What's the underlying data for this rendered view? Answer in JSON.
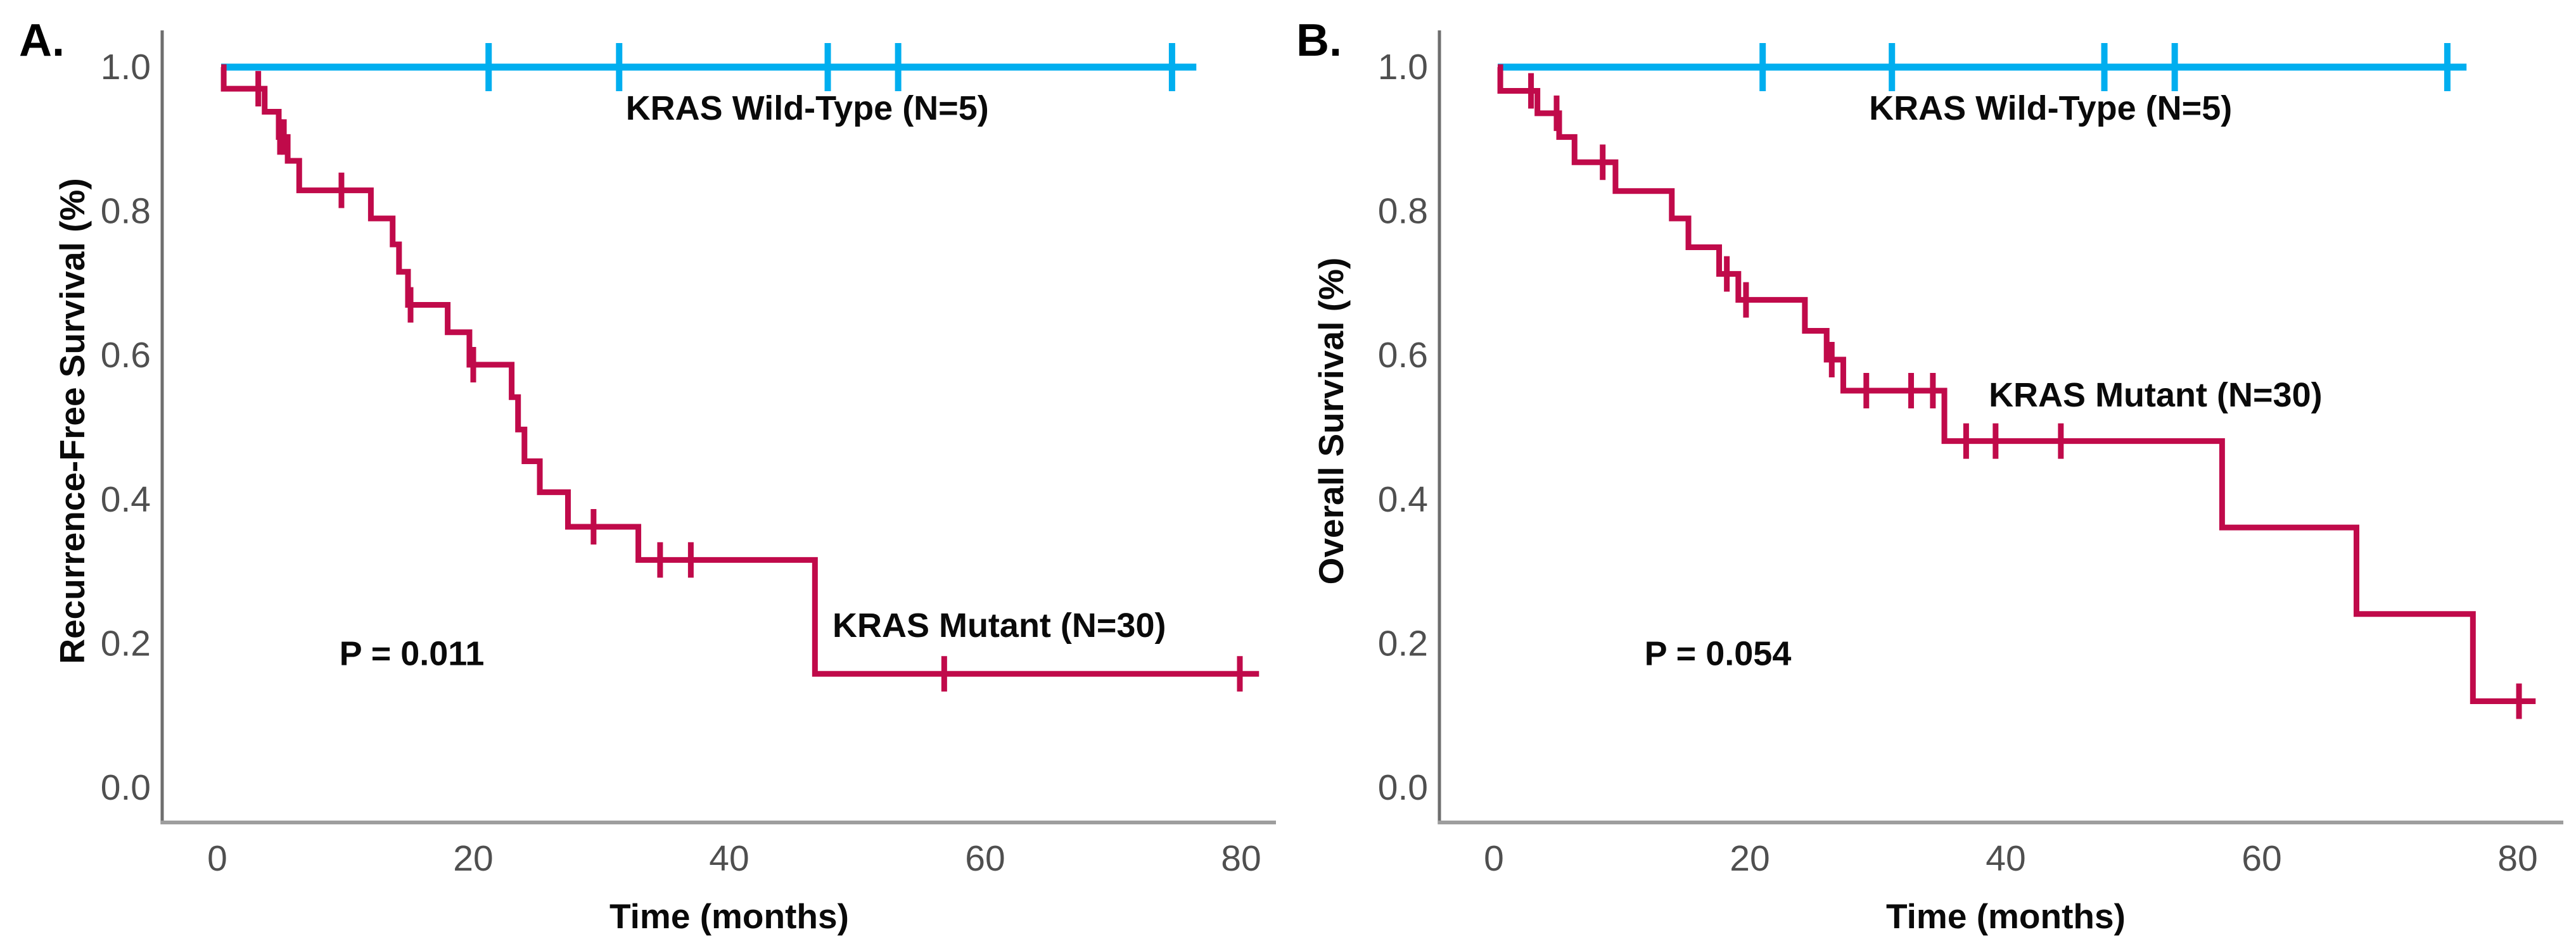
{
  "chart_data": [
    {
      "type": "line",
      "subtype": "kaplan_meier_step",
      "panel_label": "A.",
      "title": "",
      "xlabel": "Time (months)",
      "ylabel": "Recurrence-Free Survival (%)",
      "xticks": [
        0,
        20,
        40,
        60,
        80
      ],
      "x_tick_labels": [
        "0",
        "20",
        "40",
        "60",
        "80"
      ],
      "yticks": [
        0,
        0.2,
        0.4,
        0.6,
        0.8,
        1.0
      ],
      "y_tick_labels": [
        "0.0",
        "0.2",
        "0.4",
        "0.6",
        "0.8",
        "1.0"
      ],
      "xlim_months": [
        -5.6,
        83
      ],
      "ylim": [
        0.0,
        1.05
      ],
      "grid": false,
      "legend_position": "inline-annotations",
      "p_value": {
        "text": "P = 0.011",
        "x": 15.2,
        "y": 0.186
      },
      "series": [
        {
          "name": "KRAS Wild-Type (N=5)",
          "color": "#00AEEF",
          "n": 5,
          "start": [
            0.3,
            1.0
          ],
          "events": [],
          "end_t": 76.5,
          "censors": [
            [
              21.2,
              1.0
            ],
            [
              31.4,
              1.0
            ],
            [
              47.7,
              1.0
            ],
            [
              53.2,
              1.0
            ],
            [
              74.6,
              1.0
            ]
          ],
          "label_pos": {
            "x": 46.1,
            "y": 0.943
          }
        },
        {
          "name": "KRAS Mutant (N=30)",
          "color": "#C00A4A",
          "n": 30,
          "start": [
            0.3,
            1.0
          ],
          "events": [
            [
              0.5,
              0.97
            ],
            [
              3.7,
              0.938
            ],
            [
              4.8,
              0.903
            ],
            [
              5.5,
              0.87
            ],
            [
              6.4,
              0.829
            ],
            [
              12.0,
              0.79
            ],
            [
              13.7,
              0.754
            ],
            [
              14.2,
              0.716
            ],
            [
              14.9,
              0.67
            ],
            [
              18.0,
              0.632
            ],
            [
              19.7,
              0.587
            ],
            [
              23.0,
              0.542
            ],
            [
              23.5,
              0.497
            ],
            [
              24.0,
              0.453
            ],
            [
              25.2,
              0.41
            ],
            [
              27.4,
              0.362
            ],
            [
              32.9,
              0.316
            ],
            [
              46.7,
              0.158
            ]
          ],
          "end_t": 81.4,
          "censors": [
            [
              3.2,
              0.97
            ],
            [
              4.9,
              0.903
            ],
            [
              5.2,
              0.903
            ],
            [
              9.7,
              0.829
            ],
            [
              15.1,
              0.67
            ],
            [
              20.0,
              0.587
            ],
            [
              29.4,
              0.362
            ],
            [
              34.6,
              0.316
            ],
            [
              37.0,
              0.316
            ],
            [
              56.8,
              0.158
            ],
            [
              79.9,
              0.158
            ]
          ],
          "label_pos": {
            "x": 61.1,
            "y": 0.225
          }
        }
      ]
    },
    {
      "type": "line",
      "subtype": "kaplan_meier_step",
      "panel_label": "B.",
      "title": "",
      "xlabel": "Time (months)",
      "ylabel": "Overall Survival (%)",
      "xticks": [
        0,
        20,
        40,
        60,
        80
      ],
      "x_tick_labels": [
        "0",
        "20",
        "40",
        "60",
        "80"
      ],
      "yticks": [
        0,
        0.2,
        0.4,
        0.6,
        0.8,
        1.0
      ],
      "y_tick_labels": [
        "0.0",
        "0.2",
        "0.4",
        "0.6",
        "0.8",
        "1.0"
      ],
      "xlim_months": [
        -5.6,
        83
      ],
      "ylim": [
        0.0,
        1.05
      ],
      "grid": false,
      "legend_position": "inline-annotations",
      "p_value": {
        "text": "P = 0.054",
        "x": 17.5,
        "y": 0.186
      },
      "series": [
        {
          "name": "KRAS Wild-Type (N=5)",
          "color": "#00AEEF",
          "n": 5,
          "start": [
            0.3,
            1.0
          ],
          "events": [],
          "end_t": 76.0,
          "censors": [
            [
              21.0,
              1.0
            ],
            [
              31.1,
              1.0
            ],
            [
              47.7,
              1.0
            ],
            [
              53.2,
              1.0
            ],
            [
              74.5,
              1.0
            ]
          ],
          "label_pos": {
            "x": 43.5,
            "y": 0.943
          }
        },
        {
          "name": "KRAS Mutant (N=30)",
          "color": "#C00A4A",
          "n": 30,
          "start": [
            0.3,
            1.0
          ],
          "events": [
            [
              0.5,
              0.967
            ],
            [
              3.4,
              0.936
            ],
            [
              5.1,
              0.903
            ],
            [
              6.3,
              0.868
            ],
            [
              9.5,
              0.828
            ],
            [
              13.9,
              0.79
            ],
            [
              15.2,
              0.75
            ],
            [
              17.6,
              0.713
            ],
            [
              19.1,
              0.677
            ],
            [
              24.3,
              0.634
            ],
            [
              26.0,
              0.594
            ],
            [
              27.3,
              0.551
            ],
            [
              35.2,
              0.481
            ],
            [
              56.9,
              0.361
            ],
            [
              67.4,
              0.241
            ],
            [
              76.5,
              0.12
            ]
          ],
          "end_t": 81.4,
          "censors": [
            [
              2.9,
              0.967
            ],
            [
              4.9,
              0.936
            ],
            [
              8.5,
              0.868
            ],
            [
              18.2,
              0.713
            ],
            [
              19.7,
              0.677
            ],
            [
              26.4,
              0.594
            ],
            [
              29.1,
              0.551
            ],
            [
              32.6,
              0.551
            ],
            [
              34.3,
              0.551
            ],
            [
              36.9,
              0.481
            ],
            [
              39.2,
              0.481
            ],
            [
              44.3,
              0.481
            ],
            [
              80.1,
              0.12
            ]
          ],
          "label_pos": {
            "x": 51.7,
            "y": 0.545
          }
        }
      ]
    }
  ]
}
